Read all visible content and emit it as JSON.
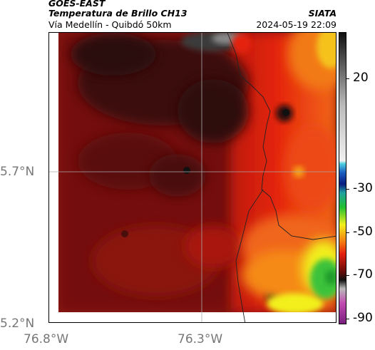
{
  "header": {
    "satellite": "GOES-EAST",
    "product": "Temperatura de Brillo CH13",
    "route": "Vía Medellín - Quibdó 50km",
    "agency": "SIATA",
    "datetime": "2024-05-19 22:09"
  },
  "axes": {
    "lat_ticks": [
      "5.7°N",
      "5.2°N"
    ],
    "lon_ticks": [
      "76.8°W",
      "76.3°W"
    ]
  },
  "colorbar": {
    "ticks": [
      "20",
      "-30",
      "-50",
      "-70",
      "-90"
    ],
    "values": [
      20,
      -30,
      -50,
      -70,
      -90
    ],
    "range": [
      -95,
      40
    ]
  },
  "colors": {
    "dark_red": "#3d0a0a",
    "red": "#b3180f",
    "bright_red": "#e8200f",
    "orange": "#f57a12",
    "yellow": "#f2ef1a",
    "green": "#20c23a"
  }
}
